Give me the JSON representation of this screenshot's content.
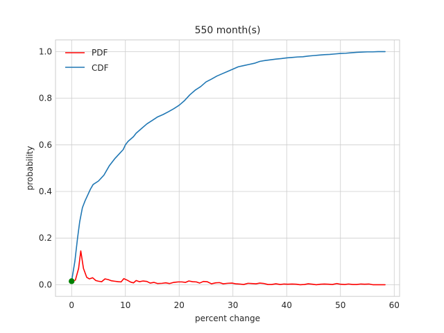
{
  "chart_data": {
    "type": "line",
    "title": "550 month(s)",
    "xlabel": "percent change",
    "ylabel": "probability",
    "xlim": [
      -3,
      61
    ],
    "ylim": [
      -0.05,
      1.05
    ],
    "grid": true,
    "legend_position": "top-left",
    "x_ticks": [
      "0",
      "10",
      "20",
      "30",
      "40",
      "50",
      "60"
    ],
    "x_tick_values": [
      0,
      10,
      20,
      30,
      40,
      50,
      60
    ],
    "y_ticks": [
      "0.0",
      "0.2",
      "0.4",
      "0.6",
      "0.8",
      "1.0"
    ],
    "y_tick_values": [
      0,
      0.2,
      0.4,
      0.6,
      0.8,
      1.0
    ],
    "series": [
      {
        "name": "PDF",
        "color": "#ff0000",
        "points": [
          [
            0,
            0.015
          ],
          [
            0.7,
            0.02
          ],
          [
            1.3,
            0.07
          ],
          [
            1.7,
            0.145
          ],
          [
            2.2,
            0.07
          ],
          [
            2.8,
            0.032
          ],
          [
            3.3,
            0.025
          ],
          [
            3.9,
            0.03
          ],
          [
            4.5,
            0.018
          ],
          [
            5.0,
            0.015
          ],
          [
            5.6,
            0.013
          ],
          [
            6.2,
            0.025
          ],
          [
            6.8,
            0.022
          ],
          [
            7.4,
            0.017
          ],
          [
            8.0,
            0.015
          ],
          [
            8.7,
            0.013
          ],
          [
            9.2,
            0.012
          ],
          [
            9.7,
            0.026
          ],
          [
            10.3,
            0.02
          ],
          [
            11.0,
            0.011
          ],
          [
            11.5,
            0.008
          ],
          [
            12.0,
            0.018
          ],
          [
            12.6,
            0.013
          ],
          [
            13.3,
            0.016
          ],
          [
            14.0,
            0.014
          ],
          [
            14.6,
            0.007
          ],
          [
            15.3,
            0.01
          ],
          [
            16.0,
            0.005
          ],
          [
            16.8,
            0.006
          ],
          [
            17.5,
            0.008
          ],
          [
            18.2,
            0.005
          ],
          [
            19.0,
            0.01
          ],
          [
            19.8,
            0.012
          ],
          [
            20.5,
            0.012
          ],
          [
            21.2,
            0.01
          ],
          [
            21.8,
            0.016
          ],
          [
            22.5,
            0.013
          ],
          [
            23.2,
            0.012
          ],
          [
            23.8,
            0.007
          ],
          [
            24.5,
            0.014
          ],
          [
            25.2,
            0.013
          ],
          [
            26.0,
            0.004
          ],
          [
            26.8,
            0.008
          ],
          [
            27.5,
            0.009
          ],
          [
            28.2,
            0.004
          ],
          [
            29.0,
            0.006
          ],
          [
            29.8,
            0.007
          ],
          [
            30.5,
            0.004
          ],
          [
            31.2,
            0.003
          ],
          [
            32.0,
            0.001
          ],
          [
            32.8,
            0.006
          ],
          [
            33.5,
            0.005
          ],
          [
            34.3,
            0.004
          ],
          [
            35.0,
            0.007
          ],
          [
            35.8,
            0.005
          ],
          [
            36.5,
            0.001
          ],
          [
            37.2,
            0.001
          ],
          [
            38.0,
            0.004
          ],
          [
            38.8,
            0.001
          ],
          [
            39.5,
            0.003
          ],
          [
            40.2,
            0.002
          ],
          [
            41.0,
            0.003
          ],
          [
            41.8,
            0.002
          ],
          [
            42.5,
            0.0
          ],
          [
            43.3,
            0.001
          ],
          [
            44.0,
            0.004
          ],
          [
            44.8,
            0.002
          ],
          [
            45.5,
            0.0
          ],
          [
            46.3,
            0.002
          ],
          [
            47.0,
            0.003
          ],
          [
            47.8,
            0.002
          ],
          [
            48.5,
            0.001
          ],
          [
            49.3,
            0.005
          ],
          [
            50.0,
            0.002
          ],
          [
            50.8,
            0.001
          ],
          [
            51.5,
            0.003
          ],
          [
            52.3,
            0.001
          ],
          [
            53.0,
            0.001
          ],
          [
            53.8,
            0.003
          ],
          [
            54.5,
            0.002
          ],
          [
            55.3,
            0.003
          ],
          [
            56.0,
            0.0
          ],
          [
            56.8,
            0.0
          ],
          [
            57.5,
            0.0
          ],
          [
            58.3,
            0.0
          ]
        ]
      },
      {
        "name": "CDF",
        "color": "#1f77b4",
        "points": [
          [
            0,
            0.015
          ],
          [
            0.6,
            0.1
          ],
          [
            1.1,
            0.2
          ],
          [
            1.5,
            0.27
          ],
          [
            2.0,
            0.33
          ],
          [
            2.5,
            0.36
          ],
          [
            3.0,
            0.385
          ],
          [
            3.5,
            0.41
          ],
          [
            4.0,
            0.43
          ],
          [
            5.0,
            0.445
          ],
          [
            6.0,
            0.47
          ],
          [
            7.0,
            0.51
          ],
          [
            8.0,
            0.54
          ],
          [
            9.0,
            0.565
          ],
          [
            9.6,
            0.58
          ],
          [
            10.0,
            0.6
          ],
          [
            10.5,
            0.615
          ],
          [
            11.0,
            0.625
          ],
          [
            11.5,
            0.635
          ],
          [
            12.0,
            0.65
          ],
          [
            13.0,
            0.67
          ],
          [
            14.0,
            0.69
          ],
          [
            15.0,
            0.705
          ],
          [
            16.0,
            0.72
          ],
          [
            17.0,
            0.73
          ],
          [
            18.0,
            0.742
          ],
          [
            19.0,
            0.755
          ],
          [
            20.0,
            0.77
          ],
          [
            21.0,
            0.79
          ],
          [
            22.0,
            0.815
          ],
          [
            23.0,
            0.835
          ],
          [
            24.0,
            0.85
          ],
          [
            25.0,
            0.87
          ],
          [
            26.0,
            0.882
          ],
          [
            27.0,
            0.895
          ],
          [
            28.0,
            0.905
          ],
          [
            29.0,
            0.915
          ],
          [
            30.0,
            0.925
          ],
          [
            31.0,
            0.935
          ],
          [
            32.0,
            0.94
          ],
          [
            33.0,
            0.945
          ],
          [
            34.0,
            0.95
          ],
          [
            35.0,
            0.958
          ],
          [
            36.0,
            0.962
          ],
          [
            37.0,
            0.965
          ],
          [
            38.0,
            0.968
          ],
          [
            39.0,
            0.97
          ],
          [
            40.0,
            0.973
          ],
          [
            41.0,
            0.975
          ],
          [
            42.0,
            0.977
          ],
          [
            43.0,
            0.978
          ],
          [
            44.0,
            0.981
          ],
          [
            45.0,
            0.983
          ],
          [
            46.0,
            0.985
          ],
          [
            47.0,
            0.987
          ],
          [
            48.0,
            0.988
          ],
          [
            49.0,
            0.99
          ],
          [
            50.0,
            0.992
          ],
          [
            51.0,
            0.993
          ],
          [
            52.0,
            0.995
          ],
          [
            53.0,
            0.997
          ],
          [
            54.0,
            0.998
          ],
          [
            55.0,
            0.999
          ],
          [
            56.0,
            0.999
          ],
          [
            57.0,
            1.0
          ],
          [
            58.3,
            1.0
          ]
        ]
      }
    ],
    "marker": {
      "x": 0,
      "y": 0.015,
      "color": "#008000"
    }
  }
}
